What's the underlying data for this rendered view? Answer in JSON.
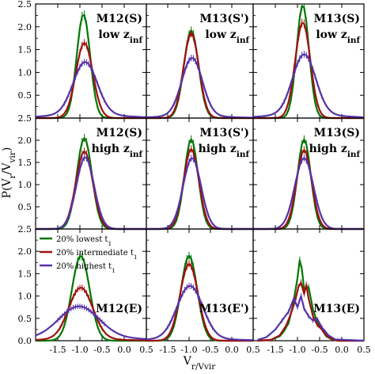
{
  "chart_data": {
    "type": "line",
    "title": "",
    "xlabel": "V_r/V_vir",
    "ylabel": "P(V_r/V_vir)",
    "xlim": [
      -2.0,
      0.5
    ],
    "ylim": [
      0.0,
      2.5
    ],
    "x_ticks": [
      -1.5,
      -1.0,
      -0.5,
      0.0,
      0.5
    ],
    "x_tick_labels": [
      "-1.5",
      "-1.0",
      "-0.5",
      "0.0",
      "0.5"
    ],
    "y_ticks": [
      0.0,
      0.5,
      1.0,
      1.5,
      2.0,
      2.5
    ],
    "y_tick_labels": [
      "0.0",
      "0.5",
      "1.0",
      "1.5",
      "2.0",
      "2.5"
    ],
    "series_styles": [
      {
        "key": "lowest",
        "color": "#007700"
      },
      {
        "key": "intermediate",
        "color": "#a01010"
      },
      {
        "key": "highest",
        "color": "#5533a8"
      }
    ],
    "legend": {
      "panel": 6,
      "placement": "top-left",
      "entries": [
        "20% lowest t_1",
        "20% intermediate t_1",
        "20% highest t_1"
      ]
    },
    "panels": [
      {
        "label": [
          "M12(S)",
          "low z_inf"
        ],
        "curves": [
          {
            "key": "lowest",
            "mu": -0.92,
            "sigma": 0.15,
            "amp": 2.28
          },
          {
            "key": "intermediate",
            "mu": -0.9,
            "sigma": 0.19,
            "amp": 1.65
          },
          {
            "key": "highest",
            "mu": -0.88,
            "sigma": 0.27,
            "amp": 1.15,
            "base": 0.08
          }
        ]
      },
      {
        "label": [
          "M13(S')",
          "low z_inf"
        ],
        "curves": [
          {
            "key": "lowest",
            "mu": -0.95,
            "sigma": 0.17,
            "amp": 1.92
          },
          {
            "key": "intermediate",
            "mu": -0.95,
            "sigma": 0.18,
            "amp": 1.85
          },
          {
            "key": "highest",
            "mu": -0.93,
            "sigma": 0.24,
            "amp": 1.27,
            "base": 0.05
          }
        ]
      },
      {
        "label": [
          "M13(S)",
          "low z_inf"
        ],
        "curves": [
          {
            "key": "lowest",
            "mu": -0.88,
            "sigma": 0.14,
            "amp": 2.48
          },
          {
            "key": "intermediate",
            "mu": -0.88,
            "sigma": 0.17,
            "amp": 2.1
          },
          {
            "key": "highest",
            "mu": -0.85,
            "sigma": 0.26,
            "amp": 1.32,
            "base": 0.08
          }
        ]
      },
      {
        "label": [
          "M12(S)",
          "high z_inf"
        ],
        "curves": [
          {
            "key": "lowest",
            "mu": -0.9,
            "sigma": 0.17,
            "amp": 2.05
          },
          {
            "key": "intermediate",
            "mu": -0.9,
            "sigma": 0.19,
            "amp": 1.75
          },
          {
            "key": "highest",
            "mu": -0.88,
            "sigma": 0.2,
            "amp": 1.62
          }
        ]
      },
      {
        "label": [
          "M13(S')",
          "high z_inf"
        ],
        "curves": [
          {
            "key": "lowest",
            "mu": -0.95,
            "sigma": 0.16,
            "amp": 2.02
          },
          {
            "key": "intermediate",
            "mu": -0.95,
            "sigma": 0.18,
            "amp": 1.8
          },
          {
            "key": "highest",
            "mu": -0.93,
            "sigma": 0.21,
            "amp": 1.6
          }
        ]
      },
      {
        "label": [
          "M13(S)",
          "high z_inf"
        ],
        "curves": [
          {
            "key": "lowest",
            "mu": -0.85,
            "sigma": 0.15,
            "amp": 2.02
          },
          {
            "key": "intermediate",
            "mu": -0.85,
            "sigma": 0.17,
            "amp": 1.78
          },
          {
            "key": "highest",
            "mu": -0.85,
            "sigma": 0.21,
            "amp": 1.6
          }
        ]
      },
      {
        "label": [
          "M12(E)"
        ],
        "curves": [
          {
            "key": "lowest",
            "mu": -0.98,
            "sigma": 0.2,
            "amp": 1.9
          },
          {
            "key": "intermediate",
            "mu": -0.98,
            "sigma": 0.27,
            "amp": 1.15,
            "base": 0.04
          },
          {
            "key": "highest",
            "mu": -1.02,
            "sigma": 0.45,
            "amp": 0.7,
            "base": 0.07
          }
        ]
      },
      {
        "label": [
          "M13(E')"
        ],
        "curves": [
          {
            "key": "lowest",
            "mu": -1.0,
            "sigma": 0.19,
            "amp": 1.9
          },
          {
            "key": "intermediate",
            "mu": -1.0,
            "sigma": 0.21,
            "amp": 1.72
          },
          {
            "key": "highest",
            "mu": -0.98,
            "sigma": 0.3,
            "amp": 1.18,
            "base": 0.05
          }
        ]
      },
      {
        "label": [
          "M13(E)"
        ],
        "curves": [
          {
            "key": "lowest",
            "points": [
              [
                -1.9,
                0
              ],
              [
                -1.6,
                0.02
              ],
              [
                -1.4,
                0.1
              ],
              [
                -1.3,
                0.22
              ],
              [
                -1.2,
                0.4
              ],
              [
                -1.1,
                0.8
              ],
              [
                -1.0,
                1.4
              ],
              [
                -0.95,
                1.8
              ],
              [
                -0.9,
                1.6
              ],
              [
                -0.85,
                1.15
              ],
              [
                -0.75,
                1.2
              ],
              [
                -0.65,
                0.7
              ],
              [
                -0.55,
                0.4
              ],
              [
                -0.45,
                0.25
              ],
              [
                -0.35,
                0.1
              ],
              [
                -0.25,
                0.04
              ],
              [
                -0.1,
                0
              ],
              [
                0.5,
                0
              ]
            ]
          },
          {
            "key": "intermediate",
            "points": [
              [
                -1.9,
                0
              ],
              [
                -1.6,
                0.02
              ],
              [
                -1.4,
                0.12
              ],
              [
                -1.25,
                0.35
              ],
              [
                -1.15,
                0.6
              ],
              [
                -1.05,
                0.9
              ],
              [
                -0.98,
                1.2
              ],
              [
                -0.92,
                1.3
              ],
              [
                -0.85,
                1.05
              ],
              [
                -0.8,
                1.25
              ],
              [
                -0.75,
                0.95
              ],
              [
                -0.65,
                0.55
              ],
              [
                -0.55,
                0.35
              ],
              [
                -0.45,
                0.25
              ],
              [
                -0.35,
                0.12
              ],
              [
                -0.25,
                0.05
              ],
              [
                -0.1,
                0
              ],
              [
                0.5,
                0
              ]
            ]
          },
          {
            "key": "highest",
            "points": [
              [
                -1.9,
                0.02
              ],
              [
                -1.7,
                0.08
              ],
              [
                -1.5,
                0.25
              ],
              [
                -1.35,
                0.45
              ],
              [
                -1.2,
                0.65
              ],
              [
                -1.08,
                0.95
              ],
              [
                -1.0,
                0.75
              ],
              [
                -0.92,
                1.0
              ],
              [
                -0.85,
                0.72
              ],
              [
                -0.75,
                0.55
              ],
              [
                -0.65,
                0.45
              ],
              [
                -0.55,
                0.48
              ],
              [
                -0.45,
                0.3
              ],
              [
                -0.3,
                0.12
              ],
              [
                -0.15,
                0.03
              ],
              [
                0.5,
                0
              ]
            ]
          }
        ]
      }
    ]
  }
}
